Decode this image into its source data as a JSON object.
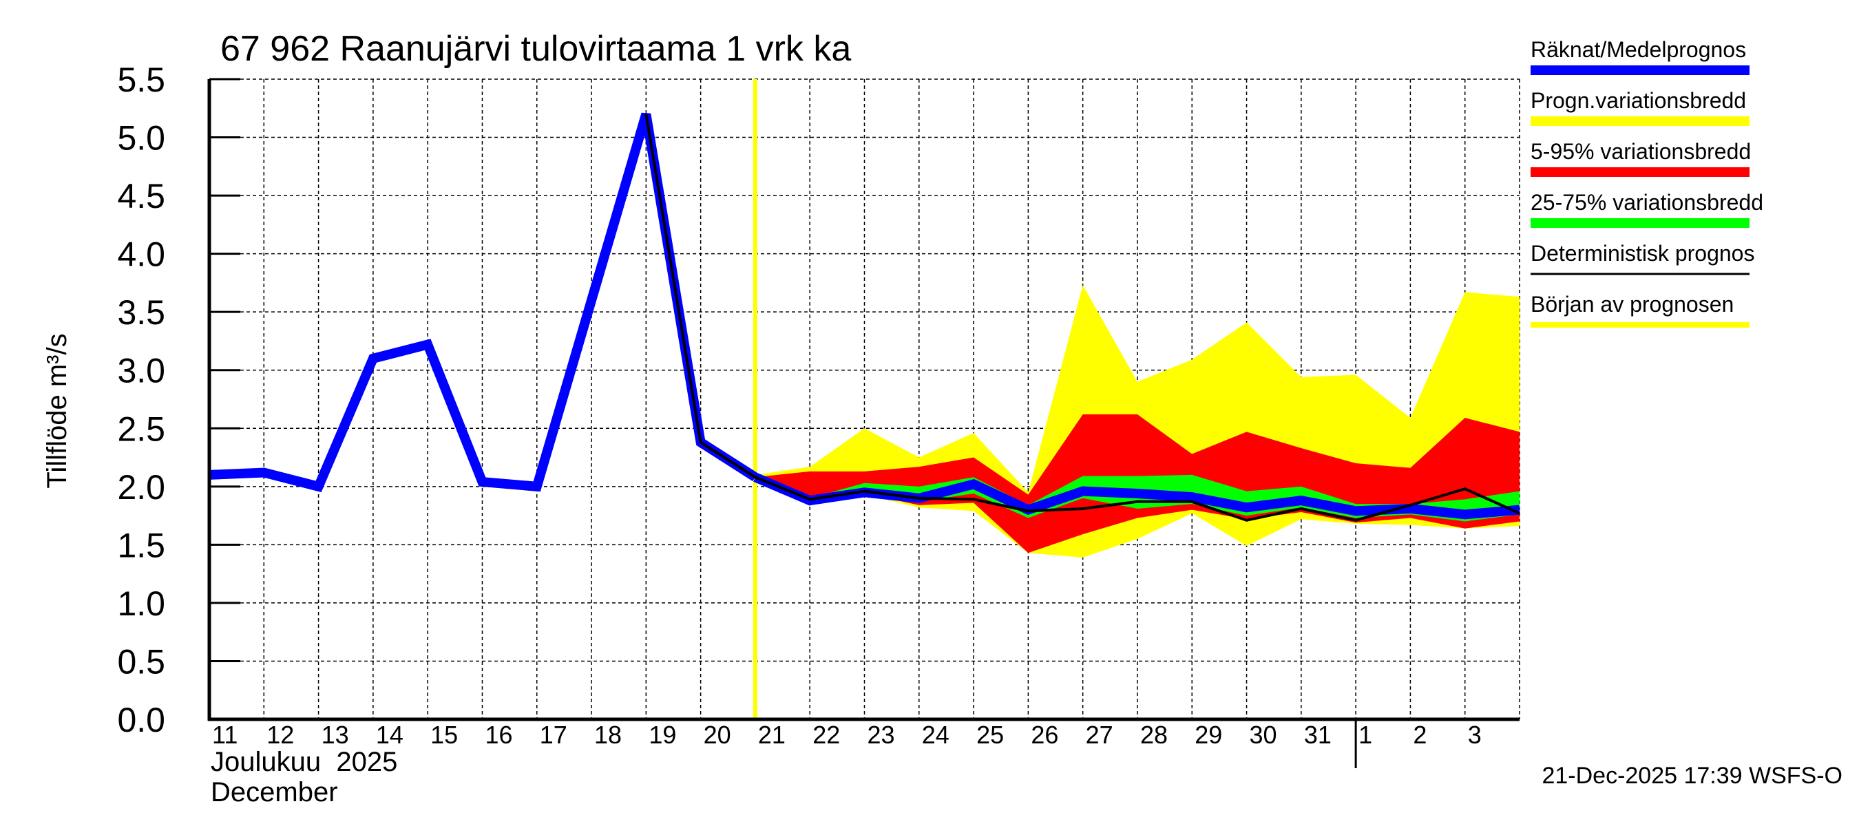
{
  "chart_data": {
    "type": "area",
    "title": "67 962 Raanujärvi tulovirtaama 1 vrk ka",
    "ylabel": "Tillflöde m³/s",
    "xlabel_month": "Joulukuu  2025",
    "xlabel_month_alt": "December",
    "ylim": [
      0,
      5.5
    ],
    "yticks": [
      "0.0",
      "0.5",
      "1.0",
      "1.5",
      "2.0",
      "2.5",
      "3.0",
      "3.5",
      "4.0",
      "4.5",
      "5.0",
      "5.5"
    ],
    "x_range_days": [
      11,
      35
    ],
    "x_tick_labels": [
      "11",
      "12",
      "13",
      "14",
      "15",
      "16",
      "17",
      "18",
      "19",
      "20",
      "21",
      "22",
      "23",
      "24",
      "25",
      "26",
      "27",
      "28",
      "29",
      "30",
      "31",
      "1",
      "2",
      "3"
    ],
    "month_boundary_day": 32,
    "forecast_start_day": 21,
    "grid": true,
    "legend_placement": "right",
    "observed": {
      "start_day": 11,
      "values": [
        2.1,
        2.12,
        2.0,
        3.1,
        3.22,
        2.04,
        2.0,
        3.6,
        5.2,
        2.38,
        2.08
      ]
    },
    "forecast_start": 21,
    "bands": [
      {
        "name": "Progn.variationsbredd",
        "color": "#ffff00",
        "upper": [
          2.1,
          2.17,
          2.5,
          2.25,
          2.46,
          1.95,
          3.73,
          2.9,
          3.09,
          3.41,
          2.94,
          2.96,
          2.59,
          3.67,
          3.63
        ],
        "lower": [
          2.08,
          1.88,
          1.93,
          1.82,
          1.79,
          1.43,
          1.39,
          1.55,
          1.77,
          1.49,
          1.72,
          1.68,
          1.67,
          1.64,
          1.66
        ]
      },
      {
        "name": "5-95% variationsbredd",
        "color": "#ff0000",
        "upper": [
          2.08,
          2.13,
          2.13,
          2.17,
          2.25,
          1.93,
          2.62,
          2.62,
          2.28,
          2.47,
          2.33,
          2.2,
          2.16,
          2.59,
          2.47
        ],
        "lower": [
          2.08,
          1.88,
          1.94,
          1.84,
          1.86,
          1.43,
          1.59,
          1.73,
          1.8,
          1.72,
          1.78,
          1.69,
          1.73,
          1.64,
          1.7
        ]
      },
      {
        "name": "25-75% variationsbredd",
        "color": "#00ff00",
        "upper": [
          2.08,
          1.9,
          2.03,
          2.0,
          2.08,
          1.84,
          2.09,
          2.09,
          2.1,
          1.96,
          2.0,
          1.85,
          1.85,
          1.89,
          1.96
        ],
        "lower": [
          2.08,
          1.88,
          1.94,
          1.87,
          1.94,
          1.73,
          1.9,
          1.81,
          1.85,
          1.75,
          1.82,
          1.73,
          1.76,
          1.7,
          1.76
        ]
      }
    ],
    "median": {
      "name": "Räknat/Medelprognos",
      "color": "#0000ff",
      "values": [
        2.08,
        1.88,
        1.95,
        1.9,
        2.02,
        1.8,
        1.96,
        1.94,
        1.91,
        1.82,
        1.88,
        1.79,
        1.81,
        1.76,
        1.8
      ]
    },
    "deterministic": {
      "name": "Deterministisk prognos",
      "color": "#000000",
      "start_day": 19,
      "values": [
        5.2,
        2.38,
        2.08,
        1.89,
        1.96,
        1.9,
        1.89,
        1.79,
        1.81,
        1.87,
        1.87,
        1.71,
        1.81,
        1.71,
        1.84,
        1.98,
        1.77
      ]
    },
    "legend": [
      {
        "label": "Räknat/Medelprognos",
        "color": "#0000ff"
      },
      {
        "label": "Progn.variationsbredd",
        "color": "#ffff00"
      },
      {
        "label": "5-95% variationsbredd",
        "color": "#ff0000"
      },
      {
        "label": "25-75% variationsbredd",
        "color": "#00ff00"
      },
      {
        "label": "Deterministisk prognos",
        "color": "#000000"
      },
      {
        "label": "Början av prognosen",
        "color": "#ffff00"
      }
    ]
  },
  "footer": {
    "timestamp": "21-Dec-2025 17:39 WSFS-O"
  }
}
